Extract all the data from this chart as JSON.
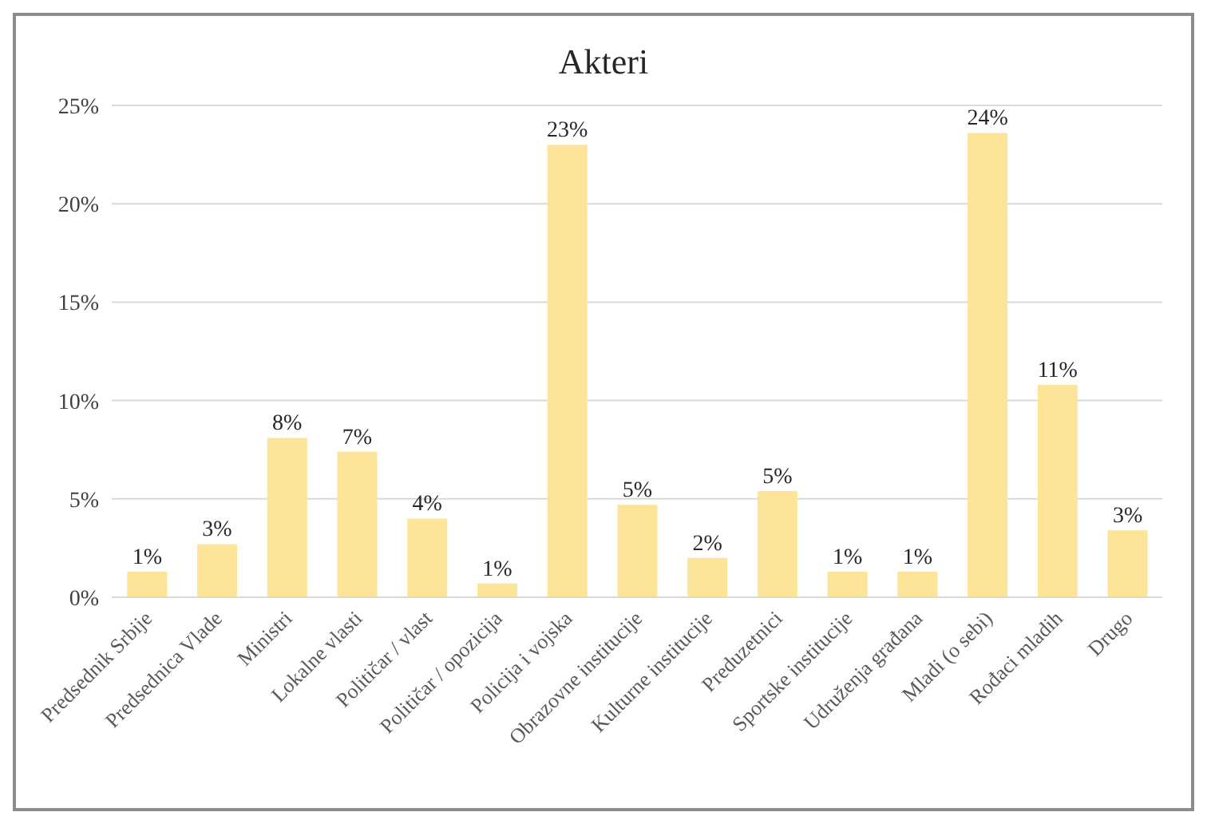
{
  "chart_data": {
    "type": "bar",
    "title": "Akteri",
    "categories": [
      "Predsednik Srbije",
      "Predsednica Vlade",
      "Ministri",
      "Lokalne vlasti",
      "Političar / vlast",
      "Političar / opozicija",
      "Policija i vojska",
      "Obrazovne institucije",
      "Kulturne institucije",
      "Preduzetnici",
      "Sportske institucije",
      "Udruženja građana",
      "Mladi (o sebi)",
      "Rođaci mladih",
      "Drugo"
    ],
    "values": [
      1.3,
      2.7,
      8.1,
      7.4,
      4.0,
      0.7,
      23.0,
      4.7,
      2.0,
      5.4,
      1.3,
      1.3,
      23.6,
      10.8,
      3.4
    ],
    "value_labels": [
      "1%",
      "3%",
      "8%",
      "7%",
      "4%",
      "1%",
      "23%",
      "5%",
      "2%",
      "5%",
      "1%",
      "1%",
      "24%",
      "11%",
      "3%"
    ],
    "color": "#fce599",
    "ylim": [
      0,
      25
    ],
    "yticks": [
      {
        "value": 0,
        "label": "0%"
      },
      {
        "value": 5,
        "label": "5%"
      },
      {
        "value": 10,
        "label": "10%"
      },
      {
        "value": 15,
        "label": "15%"
      },
      {
        "value": 20,
        "label": "20%"
      },
      {
        "value": 25,
        "label": "25%"
      }
    ],
    "grid": "y"
  }
}
